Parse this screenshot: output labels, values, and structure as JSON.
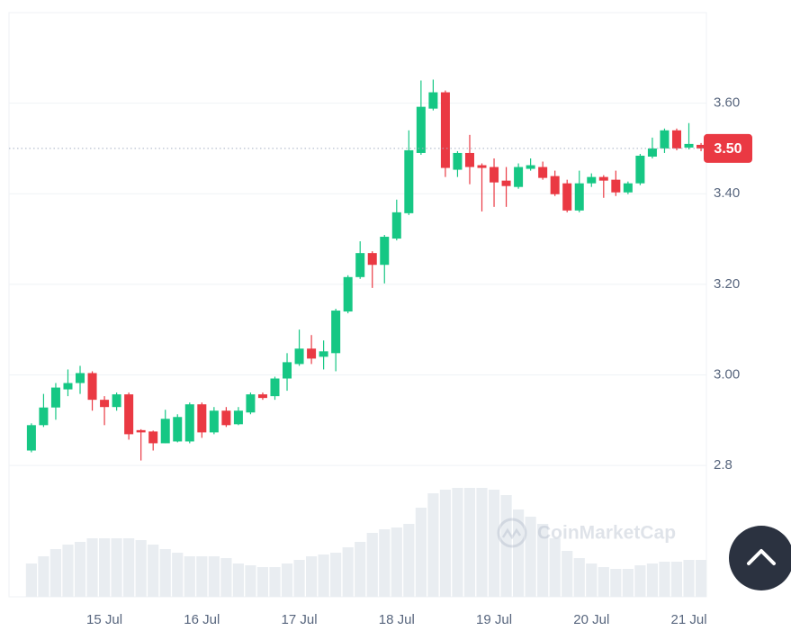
{
  "chart_data": {
    "type": "candlestick",
    "x": [
      14.25,
      14.375,
      14.5,
      14.625,
      14.75,
      14.875,
      15,
      15.125,
      15.25,
      15.375,
      15.5,
      15.625,
      15.75,
      15.875,
      16,
      16.125,
      16.25,
      16.375,
      16.5,
      16.625,
      16.75,
      16.875,
      17,
      17.125,
      17.25,
      17.375,
      17.5,
      17.625,
      17.75,
      17.875,
      18,
      18.125,
      18.25,
      18.375,
      18.5,
      18.625,
      18.75,
      18.875,
      19,
      19.125,
      19.25,
      19.375,
      19.5,
      19.625,
      19.75,
      19.875,
      20,
      20.125,
      20.25,
      20.375,
      20.5,
      20.625,
      20.75,
      20.875,
      21,
      21.125
    ],
    "open": [
      2.833,
      2.889,
      2.928,
      2.968,
      2.982,
      3.004,
      2.945,
      2.929,
      2.957,
      2.878,
      2.875,
      2.849,
      2.853,
      2.853,
      2.935,
      2.873,
      2.921,
      2.891,
      2.917,
      2.957,
      2.953,
      2.992,
      3.024,
      3.058,
      3.04,
      3.048,
      3.14,
      3.216,
      3.269,
      3.243,
      3.301,
      3.357,
      3.49,
      3.588,
      3.624,
      3.453,
      3.49,
      3.463,
      3.459,
      3.429,
      3.415,
      3.455,
      3.459,
      3.439,
      3.423,
      3.363,
      3.423,
      3.437,
      3.431,
      3.403,
      3.423,
      3.482,
      3.5,
      3.54,
      3.502,
      3.508
    ],
    "high": [
      2.893,
      2.958,
      2.982,
      3.012,
      3.02,
      3.008,
      2.953,
      2.961,
      2.961,
      2.88,
      2.877,
      2.923,
      2.913,
      2.939,
      2.939,
      2.929,
      2.929,
      2.929,
      2.961,
      2.961,
      2.996,
      3.048,
      3.1,
      3.088,
      3.076,
      3.146,
      3.22,
      3.295,
      3.273,
      3.309,
      3.387,
      3.54,
      3.65,
      3.652,
      3.628,
      3.494,
      3.53,
      3.467,
      3.478,
      3.459,
      3.467,
      3.478,
      3.471,
      3.451,
      3.431,
      3.451,
      3.445,
      3.441,
      3.451,
      3.427,
      3.488,
      3.524,
      3.544,
      3.544,
      3.556,
      3.512
    ],
    "low": [
      2.829,
      2.885,
      2.901,
      2.953,
      2.958,
      2.921,
      2.889,
      2.921,
      2.857,
      2.811,
      2.833,
      2.849,
      2.851,
      2.849,
      2.861,
      2.869,
      2.885,
      2.889,
      2.913,
      2.945,
      2.945,
      2.965,
      3.02,
      3.024,
      3.012,
      3.008,
      3.136,
      3.212,
      3.192,
      3.202,
      3.297,
      3.353,
      3.486,
      3.584,
      3.437,
      3.437,
      3.421,
      3.361,
      3.371,
      3.371,
      3.411,
      3.451,
      3.431,
      3.395,
      3.359,
      3.359,
      3.415,
      3.391,
      3.395,
      3.399,
      3.419,
      3.478,
      3.49,
      3.496,
      3.498,
      3.494
    ],
    "close": [
      2.889,
      2.928,
      2.972,
      2.982,
      3.004,
      2.945,
      2.929,
      2.957,
      2.869,
      2.873,
      2.849,
      2.903,
      2.907,
      2.935,
      2.873,
      2.921,
      2.889,
      2.921,
      2.957,
      2.949,
      2.992,
      3.028,
      3.058,
      3.036,
      3.052,
      3.142,
      3.216,
      3.269,
      3.243,
      3.305,
      3.359,
      3.496,
      3.592,
      3.624,
      3.457,
      3.49,
      3.459,
      3.457,
      3.425,
      3.417,
      3.459,
      3.463,
      3.435,
      3.399,
      3.363,
      3.423,
      3.437,
      3.429,
      3.403,
      3.423,
      3.484,
      3.5,
      3.54,
      3.5,
      3.51,
      3.5
    ],
    "volume": [
      37,
      45,
      53,
      58,
      61,
      65,
      65,
      65,
      65,
      63,
      58,
      53,
      49,
      45,
      45,
      45,
      43,
      37,
      35,
      33,
      33,
      37,
      41,
      45,
      47,
      49,
      55,
      61,
      71,
      75,
      77,
      81,
      99,
      115,
      119,
      121,
      121,
      121,
      119,
      113,
      97,
      89,
      81,
      65,
      51,
      43,
      37,
      33,
      31,
      31,
      35,
      37,
      39,
      39,
      41,
      41
    ],
    "volume_lim": [
      0,
      150
    ],
    "volume_color": "#e9edf1",
    "up_color": "#16c784",
    "down_color": "#ea3943",
    "xlim": [
      14.02,
      21.18
    ],
    "xticks": [
      {
        "value": 15,
        "label": "15 Jul"
      },
      {
        "value": 16,
        "label": "16 Jul"
      },
      {
        "value": 17,
        "label": "17 Jul"
      },
      {
        "value": 18,
        "label": "18 Jul"
      },
      {
        "value": 19,
        "label": "19 Jul"
      },
      {
        "value": 20,
        "label": "20 Jul"
      },
      {
        "value": 21,
        "label": "21 Jul"
      }
    ],
    "ylim": [
      2.51,
      3.8
    ],
    "yticks": [
      2.8,
      {
        "value": 3.0,
        "label": "3.00"
      },
      {
        "value": 3.2,
        "label": "3.20"
      },
      {
        "value": 3.4,
        "label": "3.40"
      },
      {
        "value": 3.6,
        "label": "3.60"
      }
    ],
    "last_price": {
      "value": 3.5,
      "label": "3.50"
    },
    "grid": true
  },
  "watermark": "CoinMarketCap"
}
